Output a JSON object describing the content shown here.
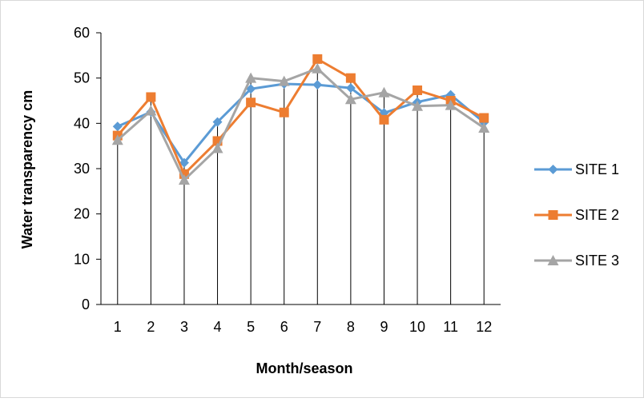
{
  "chart_data": {
    "type": "line",
    "title": "",
    "xlabel": "Month/season",
    "ylabel": "Water transparency cm",
    "categories": [
      "1",
      "2",
      "3",
      "4",
      "5",
      "6",
      "7",
      "8",
      "9",
      "10",
      "11",
      "12"
    ],
    "y_ticks": [
      "0",
      "10",
      "20",
      "30",
      "40",
      "50",
      "60"
    ],
    "ylim": [
      0,
      60
    ],
    "grid": false,
    "drop_lines": true,
    "legend_position": "right",
    "series": [
      {
        "name": "SITE 1",
        "color": "#5b9bd5",
        "marker": "diamond",
        "values": [
          39.3,
          42.5,
          31.3,
          40.3,
          47.6,
          48.7,
          48.5,
          47.8,
          42.3,
          44.7,
          46.3,
          40.2
        ]
      },
      {
        "name": "SITE 2",
        "color": "#ed7d31",
        "marker": "square",
        "values": [
          37.3,
          45.8,
          28.8,
          36.1,
          44.6,
          42.4,
          54.2,
          50.0,
          40.8,
          47.3,
          45.0,
          41.2
        ]
      },
      {
        "name": "SITE 3",
        "color": "#a5a5a5",
        "marker": "triangle",
        "values": [
          36.3,
          42.8,
          27.5,
          34.5,
          50.0,
          49.3,
          52.1,
          45.3,
          46.8,
          43.8,
          44.0,
          39.0
        ]
      }
    ]
  }
}
